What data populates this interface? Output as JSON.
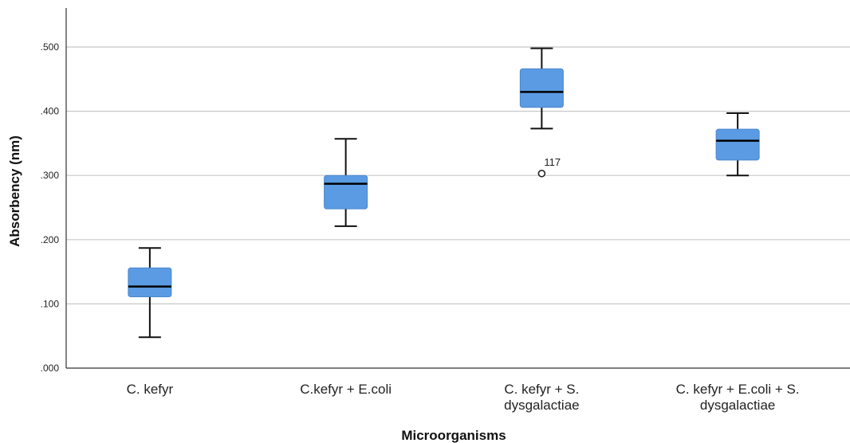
{
  "chart_data": {
    "type": "boxplot",
    "xlabel": "Microorganisms",
    "ylabel": "Absorbency (nm)",
    "ylim": [
      0,
      0.5
    ],
    "yticks": [
      ".000",
      ".100",
      ".200",
      ".300",
      ".400",
      ".500"
    ],
    "grid": true,
    "box_color": "#5b9be3",
    "categories": [
      [
        "C. kefyr"
      ],
      [
        "C.kefyr + E.coli"
      ],
      [
        "C. kefyr + S.",
        "dysgalactiae"
      ],
      [
        "C. kefyr + E.coli + S.",
        "dysgalactiae"
      ]
    ],
    "boxes": [
      {
        "min": 0.048,
        "q1": 0.111,
        "median": 0.127,
        "q3": 0.156,
        "max": 0.187,
        "outliers": []
      },
      {
        "min": 0.221,
        "q1": 0.248,
        "median": 0.287,
        "q3": 0.3,
        "max": 0.357,
        "outliers": []
      },
      {
        "min": 0.373,
        "q1": 0.406,
        "median": 0.43,
        "q3": 0.466,
        "max": 0.498,
        "outliers": [
          {
            "value": 0.303,
            "label": "117"
          }
        ]
      },
      {
        "min": 0.3,
        "q1": 0.324,
        "median": 0.354,
        "q3": 0.372,
        "max": 0.397,
        "outliers": []
      }
    ]
  }
}
